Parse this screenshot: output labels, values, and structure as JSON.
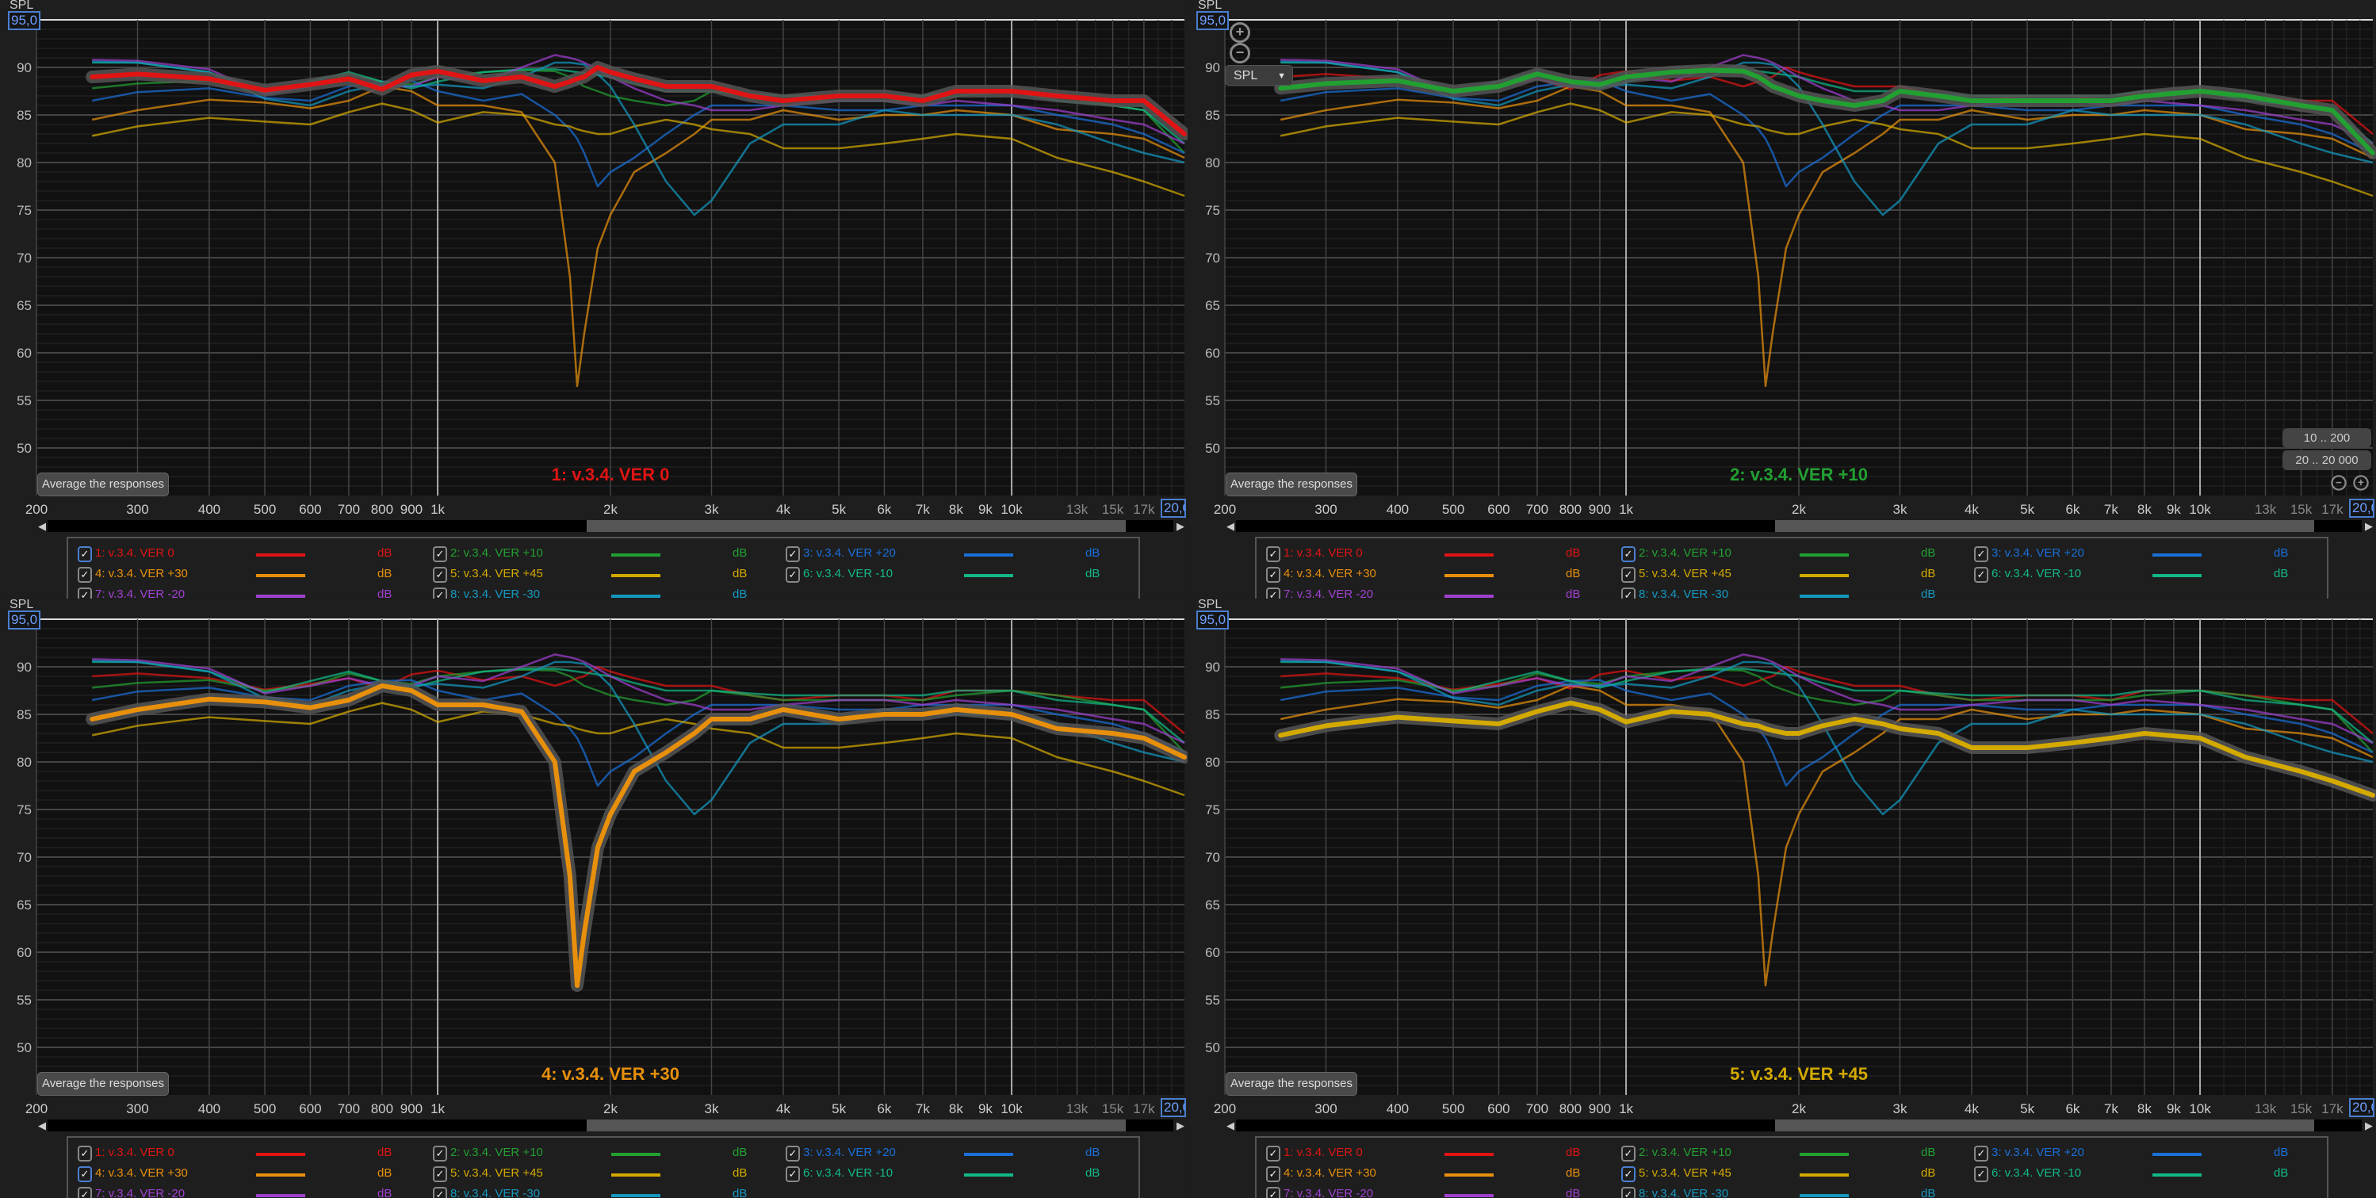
{
  "y_axis": {
    "unit_label": "SPL",
    "top_value": "95,0",
    "ticks": [
      90,
      85,
      80,
      75,
      70,
      65,
      60,
      55,
      50
    ],
    "range": [
      45,
      95
    ]
  },
  "x_axis": {
    "ticks": [
      {
        "v": 200,
        "l": "200"
      },
      {
        "v": 300,
        "l": "300"
      },
      {
        "v": 400,
        "l": "400"
      },
      {
        "v": 500,
        "l": "500"
      },
      {
        "v": 600,
        "l": "600"
      },
      {
        "v": 700,
        "l": "700"
      },
      {
        "v": 800,
        "l": "800"
      },
      {
        "v": 900,
        "l": "900"
      },
      {
        "v": 1000,
        "l": "1k"
      },
      {
        "v": 2000,
        "l": "2k"
      },
      {
        "v": 3000,
        "l": "3k"
      },
      {
        "v": 4000,
        "l": "4k"
      },
      {
        "v": 5000,
        "l": "5k"
      },
      {
        "v": 6000,
        "l": "6k"
      },
      {
        "v": 7000,
        "l": "7k"
      },
      {
        "v": 8000,
        "l": "8k"
      },
      {
        "v": 9000,
        "l": "9k"
      },
      {
        "v": 10000,
        "l": "10k"
      },
      {
        "v": 13000,
        "l": "13k"
      },
      {
        "v": 15000,
        "l": "15k"
      },
      {
        "v": 17000,
        "l": "17k"
      }
    ],
    "end_value": "20,0",
    "range": [
      200,
      20000
    ],
    "scale": "log"
  },
  "average_button": "Average the responses",
  "legend_unit": "dB",
  "controls": {
    "dropdown": "SPL",
    "range_buttons": [
      "10 .. 200",
      "20 .. 20 000"
    ],
    "zoom_in": "+",
    "zoom_out": "−",
    "checkmark": "✓"
  },
  "panels": [
    {
      "title": "1: v.3.4. VER 0",
      "highlight": 0,
      "controls": false
    },
    {
      "title": "2: v.3.4. VER +10",
      "highlight": 1,
      "controls": true
    },
    {
      "title": "4: v.3.4. VER +30",
      "highlight": 3,
      "controls": false
    },
    {
      "title": "5: v.3.4. VER +45",
      "highlight": 4,
      "controls": false
    }
  ],
  "chart_data": {
    "type": "line",
    "xlabel": "",
    "ylabel": "SPL",
    "xlim": [
      200,
      20000
    ],
    "ylim": [
      45,
      95
    ],
    "grid": true,
    "x": [
      250,
      300,
      400,
      500,
      600,
      700,
      800,
      900,
      1000,
      1200,
      1400,
      1600,
      1700,
      1750,
      1800,
      1900,
      2000,
      2200,
      2500,
      2800,
      3000,
      3500,
      4000,
      5000,
      6000,
      7000,
      8000,
      10000,
      12000,
      15000,
      17000,
      20000
    ],
    "series": [
      {
        "name": "1: v.3.4. VER 0",
        "color": "#e01414",
        "values": [
          89,
          89.3,
          88.8,
          87.6,
          88.2,
          88.8,
          87.7,
          89.2,
          89.6,
          88.6,
          89,
          88,
          88.5,
          88.8,
          89,
          90,
          89.5,
          88.8,
          88,
          88,
          88,
          87,
          86.5,
          87,
          87,
          86.5,
          87.5,
          87.5,
          87,
          86.5,
          86.5,
          83
        ]
      },
      {
        "name": "2: v.3.4. VER +10",
        "color": "#22a032",
        "values": [
          87.8,
          88.3,
          88.6,
          87.5,
          88,
          89.3,
          88.5,
          88.2,
          89,
          89.5,
          89.7,
          89.6,
          89,
          88.5,
          88,
          87.5,
          87,
          86.5,
          86,
          86.5,
          87.5,
          87,
          86.5,
          86.5,
          86.5,
          86.5,
          87,
          87.5,
          87,
          86,
          85.5,
          81
        ]
      },
      {
        "name": "3: v.3.4. VER +20",
        "color": "#1a6fd8",
        "values": [
          86.5,
          87.4,
          87.8,
          86.8,
          86.5,
          88,
          88.5,
          88.6,
          87.5,
          86.5,
          87.2,
          85,
          83.5,
          82.5,
          81,
          77.5,
          79,
          80.5,
          83,
          85,
          86,
          86,
          86,
          85.5,
          85.5,
          86,
          86,
          86,
          85,
          84,
          83,
          81
        ]
      },
      {
        "name": "4: v.3.4. VER +30",
        "color": "#e8900c",
        "values": [
          84.5,
          85.5,
          86.6,
          86.3,
          85.7,
          86.5,
          88,
          87.5,
          86,
          86,
          85.3,
          80,
          68,
          56.5,
          62,
          71,
          74.5,
          79,
          81,
          83,
          84.5,
          84.5,
          85.5,
          84.5,
          85,
          85,
          85.5,
          85,
          83.5,
          83,
          82.5,
          80.5
        ]
      },
      {
        "name": "5: v.3.4. VER +45",
        "color": "#d4aa00",
        "values": [
          82.8,
          83.8,
          84.7,
          84.3,
          84,
          85.3,
          86.2,
          85.5,
          84.2,
          85.3,
          85,
          84,
          83.8,
          83.5,
          83.3,
          83,
          83,
          83.8,
          84.5,
          84,
          83.5,
          83,
          81.5,
          81.5,
          82,
          82.5,
          83,
          82.5,
          80.5,
          79,
          78,
          76.5
        ]
      },
      {
        "name": "6: v.3.4. VER -10",
        "color": "#12b888",
        "values": [
          90.5,
          90.5,
          89.5,
          87.3,
          88.5,
          89.5,
          88.5,
          87.8,
          88.5,
          89.5,
          89.8,
          89.8,
          89.6,
          89.5,
          89.4,
          89.2,
          89,
          88.3,
          87.5,
          87.5,
          87.5,
          87.2,
          87,
          87,
          87,
          87,
          87.5,
          87.5,
          86.5,
          86,
          85.5,
          82
        ]
      },
      {
        "name": "7: v.3.4. VER -20",
        "color": "#a040d0",
        "values": [
          90.8,
          90.7,
          89.8,
          87.2,
          88,
          88.8,
          88,
          88,
          89,
          88.5,
          90,
          91.3,
          91,
          90.8,
          90.5,
          89.8,
          89,
          87.8,
          86.5,
          86,
          85.5,
          85.5,
          86,
          86.5,
          86.5,
          86,
          86.5,
          86,
          85.5,
          84.5,
          84,
          82
        ]
      },
      {
        "name": "8: v.3.4. VER -30",
        "color": "#1498c0",
        "values": [
          90.6,
          90.5,
          89.5,
          86.7,
          86,
          87.5,
          88.2,
          88,
          88.2,
          87.8,
          89,
          90.5,
          90.5,
          90.4,
          90.3,
          89.3,
          88,
          84,
          78,
          74.5,
          76,
          82,
          84,
          84,
          85.5,
          85,
          85,
          85,
          84,
          82,
          81,
          80
        ]
      }
    ]
  }
}
